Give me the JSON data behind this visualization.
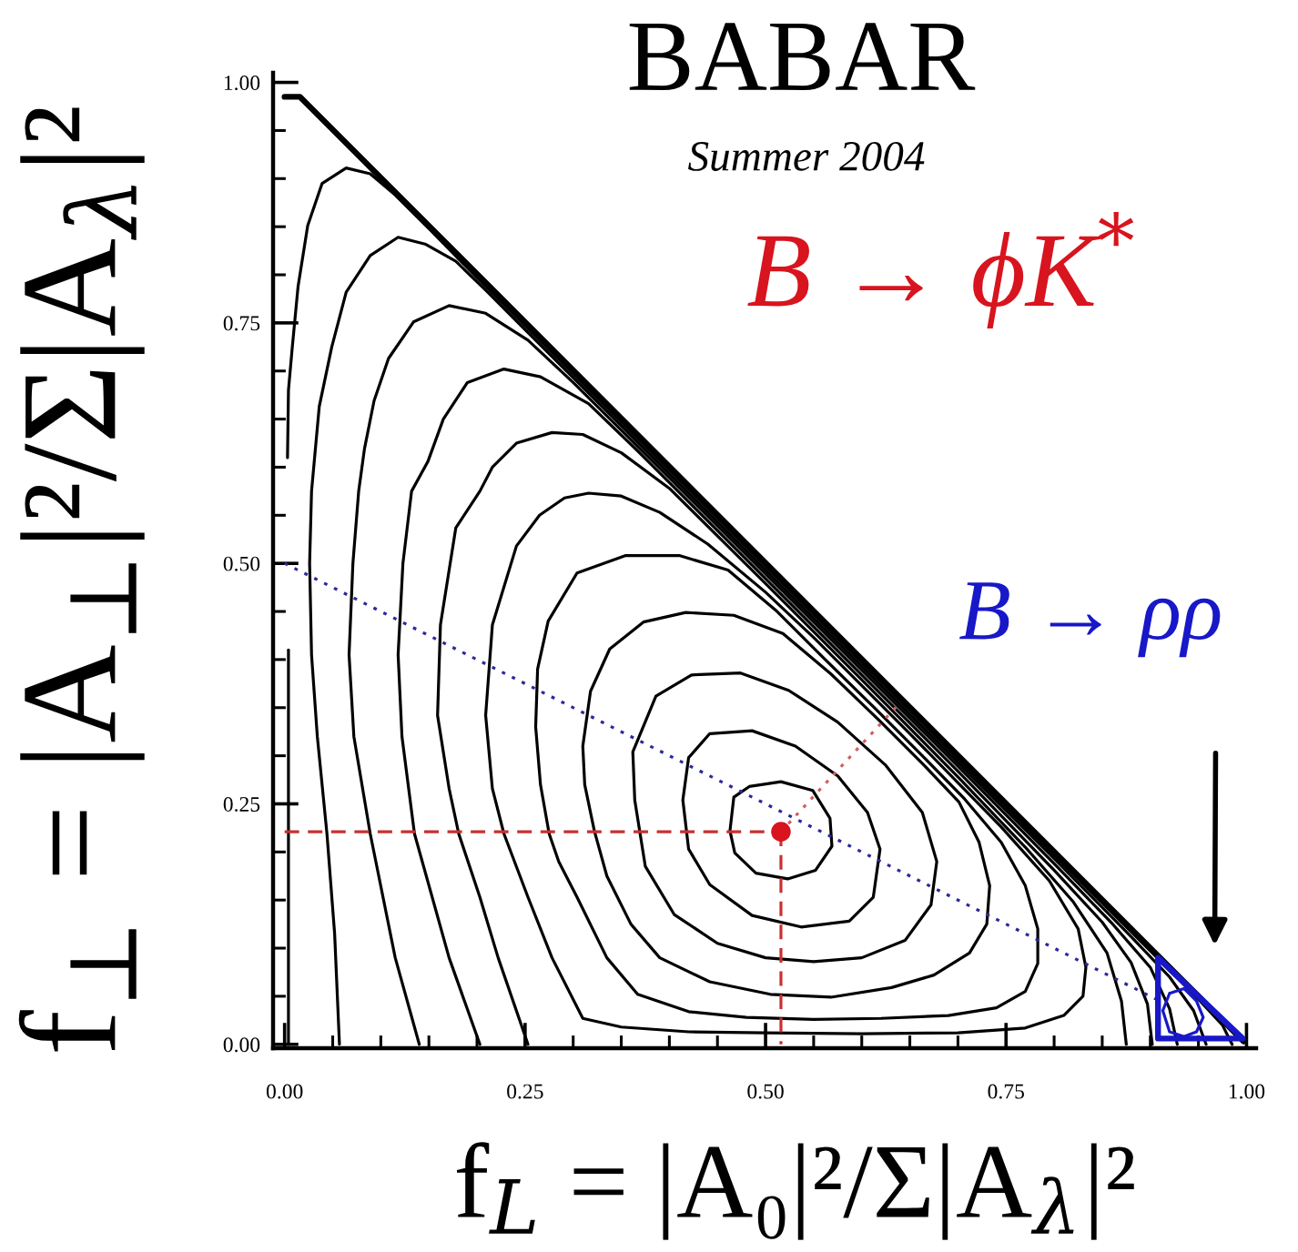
{
  "chart_data": {
    "type": "line",
    "title": "BABAR",
    "subtitle": "Summer 2004",
    "xlabel": "f$_{L}$ = |A₀|²/Σ|A$_{λ}$|²",
    "ylabel": "f$_{⊥}$ = |A$_{⊥}$|²/Σ|A$_{λ}$|²",
    "xlim": [
      -0.012,
      1.01
    ],
    "ylim": [
      -0.004,
      1.01
    ],
    "xticks": [
      {
        "value": 0,
        "label": "0.00"
      },
      {
        "value": 0.05,
        "label": null
      },
      {
        "value": 0.1,
        "label": null
      },
      {
        "value": 0.15,
        "label": null
      },
      {
        "value": 0.2,
        "label": null
      },
      {
        "value": 0.25,
        "label": "0.25"
      },
      {
        "value": 0.3,
        "label": null
      },
      {
        "value": 0.35,
        "label": null
      },
      {
        "value": 0.4,
        "label": null
      },
      {
        "value": 0.45,
        "label": null
      },
      {
        "value": 0.5,
        "label": "0.50"
      },
      {
        "value": 0.55,
        "label": null
      },
      {
        "value": 0.6,
        "label": null
      },
      {
        "value": 0.65,
        "label": null
      },
      {
        "value": 0.7,
        "label": null
      },
      {
        "value": 0.75,
        "label": "0.75"
      },
      {
        "value": 0.8,
        "label": null
      },
      {
        "value": 0.85,
        "label": null
      },
      {
        "value": 0.9,
        "label": null
      },
      {
        "value": 0.95,
        "label": null
      },
      {
        "value": 1,
        "label": "1.00"
      }
    ],
    "yticks": [
      {
        "value": 0,
        "label": "0.00"
      },
      {
        "value": 0.05,
        "label": null
      },
      {
        "value": 0.1,
        "label": null
      },
      {
        "value": 0.15,
        "label": null
      },
      {
        "value": 0.2,
        "label": null
      },
      {
        "value": 0.25,
        "label": "0.25"
      },
      {
        "value": 0.3,
        "label": null
      },
      {
        "value": 0.35,
        "label": null
      },
      {
        "value": 0.4,
        "label": null
      },
      {
        "value": 0.45,
        "label": null
      },
      {
        "value": 0.5,
        "label": "0.50"
      },
      {
        "value": 0.55,
        "label": null
      },
      {
        "value": 0.6,
        "label": null
      },
      {
        "value": 0.65,
        "label": null
      },
      {
        "value": 0.7,
        "label": null
      },
      {
        "value": 0.75,
        "label": "0.75"
      },
      {
        "value": 0.8,
        "label": null
      },
      {
        "value": 0.85,
        "label": null
      },
      {
        "value": 0.9,
        "label": null
      },
      {
        "value": 0.95,
        "label": null
      },
      {
        "value": 1,
        "label": "1.00"
      }
    ],
    "series": [
      {
        "color": "#000000",
        "x": [
          0,
          0.016,
          0.997
        ],
        "values": [
          0.985,
          0.985,
          0.003
        ]
      },
      {
        "color": "#000000",
        "x": [
          0.004,
          0.004
        ],
        "values": [
          0,
          0.41
        ]
      },
      {
        "color": "#000000",
        "x": [
          0.003,
          0.004,
          0.008,
          0.014,
          0.024,
          0.039,
          0.064,
          0.089,
          0.115,
          0.153,
          0.2,
          0.3,
          0.4,
          0.5,
          0.6,
          0.7,
          0.8,
          0.9,
          0.95,
          0.975,
          0.985
        ],
        "values": [
          0.61,
          0.68,
          0.725,
          0.788,
          0.851,
          0.895,
          0.911,
          0.905,
          0.883,
          0.845,
          0.797,
          0.697,
          0.597,
          0.497,
          0.397,
          0.297,
          0.197,
          0.097,
          0.047,
          0.02,
          0
        ]
      },
      {
        "color": "#000000",
        "x": [
          0.057,
          0.052,
          0.044,
          0.034,
          0.028,
          0.026,
          0.028,
          0.036,
          0.049,
          0.064,
          0.089,
          0.118,
          0.146,
          0.178,
          0.209,
          0.25,
          0.35,
          0.5,
          0.65,
          0.8,
          0.88,
          0.92,
          0.945,
          0.958
        ],
        "values": [
          0,
          0.115,
          0.219,
          0.32,
          0.405,
          0.5,
          0.575,
          0.663,
          0.725,
          0.782,
          0.82,
          0.839,
          0.832,
          0.814,
          0.784,
          0.743,
          0.643,
          0.493,
          0.343,
          0.193,
          0.112,
          0.07,
          0.035,
          0
        ]
      },
      {
        "color": "#000000",
        "x": [
          0.14,
          0.115,
          0.089,
          0.072,
          0.067,
          0.071,
          0.077,
          0.083,
          0.093,
          0.108,
          0.134,
          0.171,
          0.209,
          0.253,
          0.3,
          0.4,
          0.55,
          0.7,
          0.8,
          0.86,
          0.9,
          0.92,
          0.928
        ],
        "values": [
          0,
          0.09,
          0.219,
          0.32,
          0.405,
          0.5,
          0.575,
          0.619,
          0.669,
          0.713,
          0.751,
          0.768,
          0.76,
          0.732,
          0.688,
          0.589,
          0.439,
          0.289,
          0.188,
          0.126,
          0.08,
          0.037,
          0
        ]
      },
      {
        "color": "#000000",
        "x": [
          0.203,
          0.171,
          0.135,
          0.122,
          0.118,
          0.123,
          0.132,
          0.149,
          0.165,
          0.19,
          0.228,
          0.266,
          0.316,
          0.367,
          0.45,
          0.55,
          0.7,
          0.8,
          0.85,
          0.88,
          0.897,
          0.902
        ],
        "values": [
          0,
          0.09,
          0.219,
          0.32,
          0.405,
          0.5,
          0.575,
          0.606,
          0.65,
          0.688,
          0.702,
          0.694,
          0.666,
          0.617,
          0.534,
          0.434,
          0.284,
          0.181,
          0.127,
          0.085,
          0.042,
          0
        ]
      },
      {
        "color": "#000000",
        "x": [
          0.253,
          0.222,
          0.203,
          0.181,
          0.171,
          0.159,
          0.162,
          0.178,
          0.203,
          0.216,
          0.241,
          0.278,
          0.31,
          0.35,
          0.4,
          0.5,
          0.6,
          0.7,
          0.77,
          0.82,
          0.855,
          0.87,
          0.875
        ],
        "values": [
          0,
          0.09,
          0.153,
          0.219,
          0.266,
          0.342,
          0.436,
          0.537,
          0.575,
          0.6,
          0.625,
          0.636,
          0.634,
          0.615,
          0.578,
          0.479,
          0.379,
          0.278,
          0.205,
          0.148,
          0.095,
          0.045,
          0
        ]
      },
      {
        "color": "#000000",
        "x": [
          0.228,
          0.216,
          0.209,
          0.216,
          0.241,
          0.265,
          0.291,
          0.316,
          0.35,
          0.39,
          0.44,
          0.5,
          0.55,
          0.65,
          0.745,
          0.795,
          0.825,
          0.833,
          0.83,
          0.81,
          0.77,
          0.7,
          0.6,
          0.5,
          0.42,
          0.35,
          0.31,
          0.278,
          0.253,
          0.228,
          0.216
        ],
        "values": [
          0.219,
          0.266,
          0.342,
          0.436,
          0.518,
          0.55,
          0.568,
          0.573,
          0.57,
          0.553,
          0.52,
          0.47,
          0.423,
          0.323,
          0.226,
          0.17,
          0.12,
          0.08,
          0.05,
          0.03,
          0.017,
          0.012,
          0.011,
          0.012,
          0.013,
          0.018,
          0.027,
          0.09,
          0.153,
          0.219,
          0.266
        ]
      },
      {
        "color": "#000000",
        "x": [
          0.275,
          0.266,
          0.261,
          0.263,
          0.274,
          0.304,
          0.354,
          0.411,
          0.461,
          0.512,
          0.562,
          0.612,
          0.663,
          0.707,
          0.745,
          0.77,
          0.783,
          0.783,
          0.77,
          0.74,
          0.69,
          0.62,
          0.55,
          0.48,
          0.42,
          0.367,
          0.335,
          0.304,
          0.285,
          0.275,
          0.266
        ],
        "values": [
          0.219,
          0.27,
          0.33,
          0.39,
          0.44,
          0.49,
          0.508,
          0.508,
          0.493,
          0.45,
          0.4,
          0.351,
          0.3,
          0.255,
          0.21,
          0.165,
          0.12,
          0.084,
          0.055,
          0.038,
          0.03,
          0.027,
          0.026,
          0.028,
          0.034,
          0.052,
          0.09,
          0.153,
          0.19,
          0.219,
          0.27
        ]
      },
      {
        "color": "#000000",
        "x": [
          0.322,
          0.312,
          0.31,
          0.318,
          0.338,
          0.373,
          0.417,
          0.467,
          0.518,
          0.568,
          0.619,
          0.663,
          0.701,
          0.722,
          0.733,
          0.73,
          0.712,
          0.675,
          0.631,
          0.568,
          0.505,
          0.442,
          0.39,
          0.36,
          0.335,
          0.322,
          0.312
        ],
        "values": [
          0.222,
          0.27,
          0.31,
          0.367,
          0.411,
          0.439,
          0.449,
          0.446,
          0.427,
          0.385,
          0.336,
          0.292,
          0.252,
          0.21,
          0.165,
          0.125,
          0.095,
          0.072,
          0.059,
          0.049,
          0.052,
          0.065,
          0.09,
          0.125,
          0.175,
          0.222,
          0.27
        ]
      },
      {
        "color": "#000000",
        "x": [
          0.364,
          0.362,
          0.386,
          0.423,
          0.474,
          0.524,
          0.575,
          0.625,
          0.663,
          0.678,
          0.672,
          0.645,
          0.6,
          0.55,
          0.5,
          0.45,
          0.405,
          0.375,
          0.364,
          0.362
        ],
        "values": [
          0.254,
          0.304,
          0.362,
          0.384,
          0.386,
          0.368,
          0.335,
          0.29,
          0.241,
          0.19,
          0.145,
          0.108,
          0.09,
          0.086,
          0.09,
          0.105,
          0.135,
          0.185,
          0.254,
          0.304
        ]
      },
      {
        "color": "#000000",
        "x": [
          0.414,
          0.42,
          0.442,
          0.486,
          0.531,
          0.575,
          0.606,
          0.619,
          0.612,
          0.587,
          0.537,
          0.486,
          0.442,
          0.42,
          0.414,
          0.42
        ],
        "values": [
          0.254,
          0.298,
          0.323,
          0.326,
          0.31,
          0.279,
          0.241,
          0.203,
          0.153,
          0.128,
          0.122,
          0.134,
          0.166,
          0.203,
          0.254,
          0.298
        ]
      },
      {
        "color": "#000000",
        "x": [
          0.463,
          0.467,
          0.483,
          0.516,
          0.549,
          0.567,
          0.569,
          0.552,
          0.523,
          0.49,
          0.468,
          0.463,
          0.467
        ],
        "values": [
          0.222,
          0.257,
          0.268,
          0.273,
          0.264,
          0.235,
          0.206,
          0.181,
          0.172,
          0.178,
          0.199,
          0.222,
          0.257
        ]
      },
      {
        "color": "#c83030",
        "line_style": "dashed",
        "x": [
          0,
          0.516
        ],
        "values": [
          0.221,
          0.221
        ]
      },
      {
        "color": "#c83030",
        "line_style": "dashed",
        "x": [
          0.516,
          0.516
        ],
        "values": [
          0.221,
          0
        ]
      },
      {
        "color": "#d06060",
        "line_style": "dotted",
        "x": [
          0.516,
          0.636
        ],
        "values": [
          0.221,
          0.351
        ]
      },
      {
        "color": "#2a2a9a",
        "line_style": "dotted",
        "x": [
          0,
          0.908
        ],
        "values": [
          0.5,
          0.046
        ]
      },
      {
        "name": "B → ρρ",
        "color": "#1818c8",
        "x": [
          0.908,
          0.908,
          0.996,
          0.908,
          0.908
        ],
        "values": [
          0.006,
          0.09,
          0.006,
          0.006,
          0.09
        ]
      },
      {
        "color": "#1818c8",
        "x": [
          0.913,
          0.92,
          0.935,
          0.948,
          0.955,
          0.948,
          0.935,
          0.92,
          0.913,
          0.92
        ],
        "values": [
          0.035,
          0.053,
          0.058,
          0.045,
          0.028,
          0.013,
          0.008,
          0.013,
          0.035,
          0.053
        ]
      },
      {
        "type": "scatter",
        "name": "B → ϕK$^{*}$",
        "color": "#d8141e",
        "marker": "circle",
        "x": [
          0.516
        ],
        "values": [
          0.221
        ]
      }
    ]
  }
}
